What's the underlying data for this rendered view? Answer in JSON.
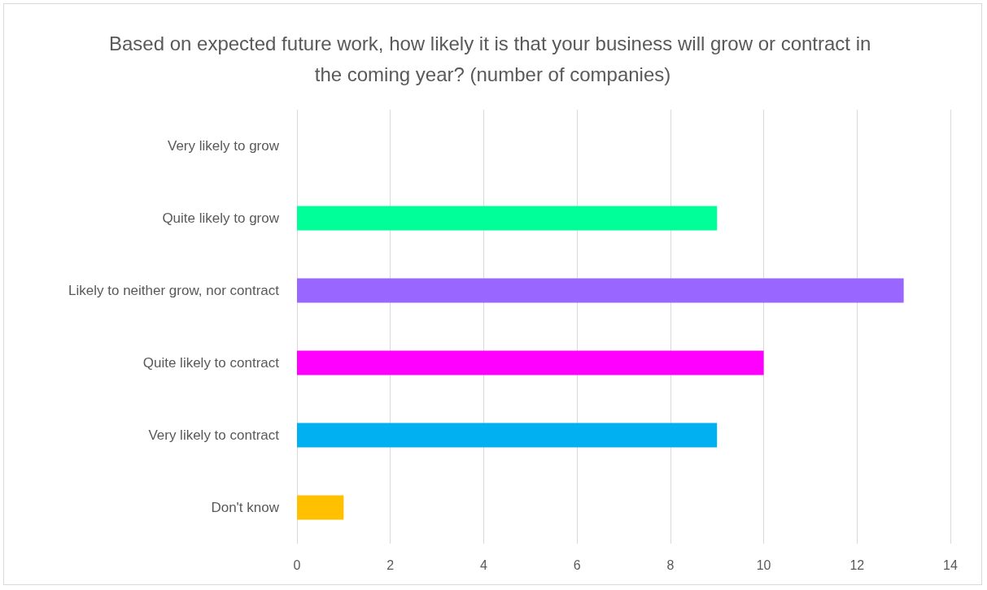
{
  "chart_data": {
    "type": "bar",
    "orientation": "horizontal",
    "title": "Based on expected future work, how likely it is that your business will grow or contract in the coming year? (number of companies)",
    "categories": [
      "Very likely to grow",
      "Quite likely to grow",
      "Likely to neither grow, nor contract",
      "Quite likely to contract",
      "Very likely to contract",
      "Don't know"
    ],
    "values": [
      0,
      9,
      13,
      10,
      9,
      1
    ],
    "colors": [
      "#4472c4",
      "#00ff99",
      "#9966ff",
      "#ff00ff",
      "#00b0f0",
      "#ffc000"
    ],
    "xlim": [
      0,
      14
    ],
    "xticks": [
      0,
      2,
      4,
      6,
      8,
      10,
      12,
      14
    ],
    "grid": "x"
  }
}
